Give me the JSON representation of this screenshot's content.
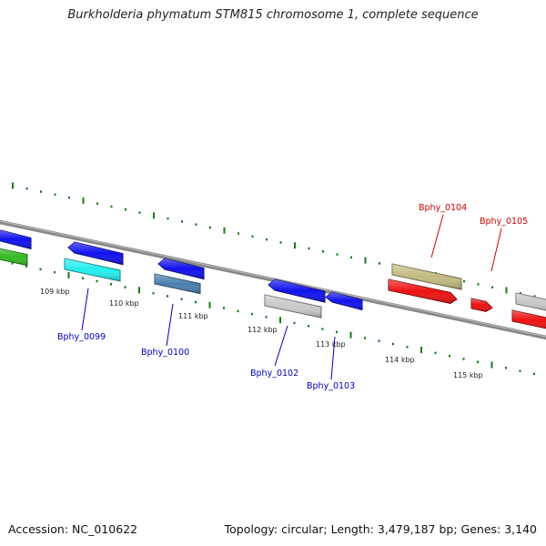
{
  "map": {
    "title": "Burkholderia phymatum STM815 chromosome 1, complete sequence",
    "accession": "Accession: NC_010622",
    "summary": "Topology: circular; Length: 3,479,187 bp; Genes: 3,140"
  },
  "ticks": [
    "109 kbp",
    "110 kbp",
    "111 kbp",
    "112 kbp",
    "113 kbp",
    "114 kbp",
    "115 kbp"
  ],
  "gene_labels": [
    {
      "text": "Bphy_0099",
      "color": "#0000bb"
    },
    {
      "text": "Bphy_0100",
      "color": "#0000bb"
    },
    {
      "text": "Bphy_0102",
      "color": "#0000bb"
    },
    {
      "text": "Bphy_0103",
      "color": "#0000bb"
    },
    {
      "text": "Bphy_0104",
      "color": "#cc0000"
    },
    {
      "text": "Bphy_0105",
      "color": "#cc0000"
    }
  ],
  "colors": {
    "backbone": "#888888",
    "tick_marks": "#1a7a1a",
    "blue_gene": "#1111ee",
    "cyan_gene": "#22eeee",
    "steel_gene": "#4a7fb0",
    "grey_gene": "#c8c8c8",
    "olive_gene": "#c2bb80",
    "red_gene": "#ee1111",
    "green_gene": "#33bb22"
  }
}
